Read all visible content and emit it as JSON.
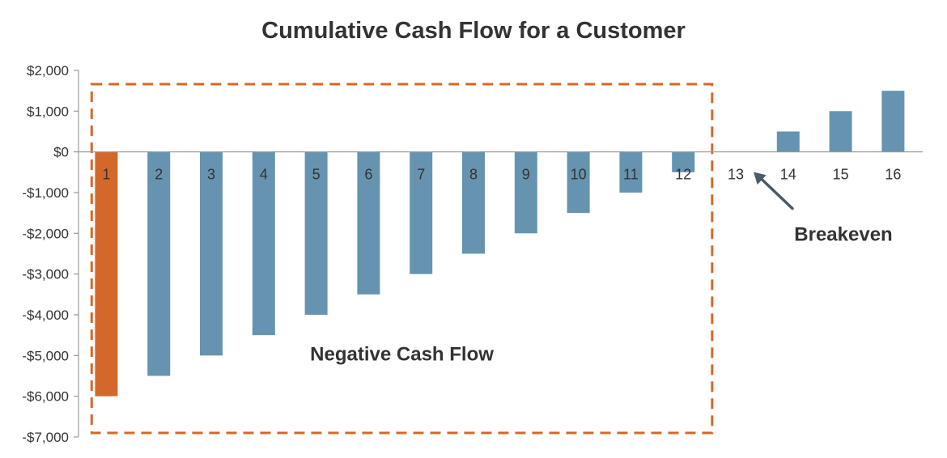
{
  "chart_data": {
    "type": "bar",
    "title": "Cumulative Cash Flow for a Customer",
    "xlabel": "",
    "ylabel": "",
    "categories": [
      "1",
      "2",
      "3",
      "4",
      "5",
      "6",
      "7",
      "8",
      "9",
      "10",
      "11",
      "12",
      "13",
      "14",
      "15",
      "16"
    ],
    "values": [
      -6000,
      -5500,
      -5000,
      -4500,
      -4000,
      -3500,
      -3000,
      -2500,
      -2000,
      -1500,
      -1000,
      -500,
      0,
      500,
      1000,
      1500
    ],
    "highlight_category": "1",
    "ylim": [
      -7000,
      2000
    ],
    "yticks": [
      2000,
      1000,
      0,
      -1000,
      -2000,
      -3000,
      -4000,
      -5000,
      -6000,
      -7000
    ],
    "ytick_labels": [
      "$2,000",
      "$1,000",
      "$0",
      "-$1,000",
      "-$2,000",
      "-$3,000",
      "-$4,000",
      "-$5,000",
      "-$6,000",
      "-$7,000"
    ],
    "grid": false,
    "colors": {
      "bar": "#6694b0",
      "highlight": "#d2692a",
      "box": "#d2692a",
      "text": "#333333",
      "arrow": "#4a5c68"
    },
    "annotations": {
      "negative_region": {
        "label": "Negative Cash Flow",
        "from_category": "1",
        "to_category": "12"
      },
      "breakeven": {
        "label": "Breakeven",
        "category": "13"
      }
    }
  }
}
